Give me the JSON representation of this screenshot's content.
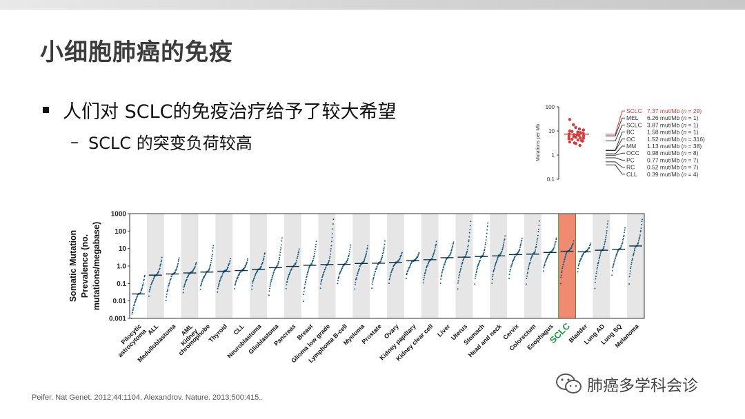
{
  "slide": {
    "title": "小细胞肺癌的免疫",
    "bullet": "人们对 SCLC的免疫治疗给予了较大希望",
    "sub_dash": "–",
    "sub_bullet": "SCLC 的突变负荷较高",
    "footer": "Peifer. Nat Genet. 2012;44:1104.  Alexandrov. Nature. 2013;500:415..",
    "watermark": "肺癌多学科会诊"
  },
  "colors": {
    "sclc_highlight": "#ee8b71",
    "sclc_label": "#1a9a3c",
    "dots": "#1f5f80",
    "small_dots": "#d63a3a",
    "band": "#e6e6e6"
  },
  "chart_data": [
    {
      "type": "scatter",
      "title": "",
      "ylabel": "Mutations per Mb",
      "y_scale": "log",
      "ylim": [
        0.1,
        100
      ],
      "yticks": [
        "100",
        "10",
        "1",
        "0.1"
      ],
      "legend": [
        {
          "label": "SCLC",
          "value": "7.37 mut/Mb",
          "n": "29",
          "highlight": true
        },
        {
          "label": "MEL",
          "value": "6.26 mut/Mb",
          "n": "1"
        },
        {
          "label": "SCLC",
          "value": "3.87 mut/Mb",
          "n": "1"
        },
        {
          "label": "BC",
          "value": "1.58 mut/Mb",
          "n": "1"
        },
        {
          "label": "OC",
          "value": "1.52 mut/Mb",
          "n": "316"
        },
        {
          "label": "MM",
          "value": "1.13 mut/Mb",
          "n": "38"
        },
        {
          "label": "OCC",
          "value": "0.98 mut/Mb",
          "n": "8"
        },
        {
          "label": "PC",
          "value": "0.77 mut/Mb",
          "n": "7"
        },
        {
          "label": "RC",
          "value": "0.52 mut/Mb",
          "n": "7"
        },
        {
          "label": "CLL",
          "value": "0.39 mut/Mb",
          "n": "4"
        }
      ],
      "sclc_points": [
        30,
        18,
        14,
        12,
        11,
        10,
        9.5,
        9,
        8.5,
        8,
        7.5,
        7,
        7,
        6.5,
        6.2,
        6,
        5.8,
        5.5,
        5.2,
        5,
        4.8,
        4.5,
        4.2,
        4,
        3.8,
        3.5,
        3.2,
        3,
        2.5
      ]
    },
    {
      "type": "scatter",
      "title": "",
      "ylabel_lines": [
        "Somatic Mutation",
        "Prevalence (no.",
        "mutations/megabase)"
      ],
      "y_scale": "log",
      "ylim": [
        0.001,
        1000
      ],
      "yticks": [
        "1000",
        "100",
        "10",
        "1.0",
        "0.1",
        "0.01",
        "0.001"
      ],
      "highlight_category": "SCLC",
      "categories": [
        "Pilocytic astrocytoma",
        "ALL",
        "Medulloblastoma",
        "AML",
        "Kidney chromophobe",
        "Thyroid",
        "CLL",
        "Neuroblastoma",
        "Glioblastoma",
        "Pancreas",
        "Breast",
        "Glioma low grade",
        "Lymphoma B-cell",
        "Myeloma",
        "Prostate",
        "Ovary",
        "Kidney papillary",
        "Kidney clear cell",
        "Liver",
        "Uterus",
        "Stomach",
        "Head and neck",
        "Cervix",
        "Colorectum",
        "Esophagus",
        "SCLC",
        "Bladder",
        "Lung AD",
        "Lung SQ",
        "Melanoma"
      ],
      "label_lines": [
        [
          "Pilocytic",
          "astrocytoma"
        ],
        [
          "ALL"
        ],
        [
          "Medulloblastoma"
        ],
        [
          "AML",
          "Kidney"
        ],
        [
          "chromophobe"
        ],
        [
          "Thyroid"
        ],
        [
          "CLL"
        ],
        [
          "Neuroblastoma"
        ],
        [
          "Glioblastoma"
        ],
        [
          "Pancreas"
        ],
        [
          "Breast"
        ],
        [
          "Glioma  low grade"
        ],
        [
          "Lymphoma  B-cell"
        ],
        [
          "Myeloma"
        ],
        [
          "Prostate"
        ],
        [
          "Ovary"
        ],
        [
          "Kidney papillary"
        ],
        [
          "Kidney clear cell"
        ],
        [
          "Liver"
        ],
        [
          "Uterus"
        ],
        [
          "Stomach"
        ],
        [
          "Head and neck"
        ],
        [
          "Cervix"
        ],
        [
          "Colorectum"
        ],
        [
          "Esophagus"
        ],
        [
          "SCLC"
        ],
        [
          "Bladder"
        ],
        [
          "Lung AD"
        ],
        [
          "Lung SQ"
        ],
        [
          "Melanoma"
        ]
      ],
      "medians": [
        0.025,
        0.3,
        0.35,
        0.4,
        0.45,
        0.5,
        0.55,
        0.65,
        0.8,
        0.95,
        1.1,
        1.2,
        1.25,
        1.4,
        1.45,
        1.6,
        2.0,
        2.3,
        3.0,
        3.2,
        3.5,
        3.8,
        4.5,
        4.8,
        6.0,
        7.0,
        6.5,
        8.0,
        9.0,
        14.0
      ],
      "ranges": [
        [
          0.001,
          0.3
        ],
        [
          0.02,
          3
        ],
        [
          0.01,
          3
        ],
        [
          0.03,
          1.5
        ],
        [
          0.05,
          15
        ],
        [
          0.03,
          2.5
        ],
        [
          0.05,
          2.5
        ],
        [
          0.05,
          6
        ],
        [
          0.02,
          40
        ],
        [
          0.05,
          10
        ],
        [
          0.01,
          25
        ],
        [
          0.05,
          500
        ],
        [
          0.1,
          15
        ],
        [
          0.05,
          15
        ],
        [
          0.05,
          25
        ],
        [
          0.1,
          6
        ],
        [
          0.2,
          6
        ],
        [
          0.1,
          25
        ],
        [
          0.1,
          25
        ],
        [
          0.05,
          350
        ],
        [
          0.1,
          300
        ],
        [
          0.1,
          50
        ],
        [
          0.2,
          40
        ],
        [
          0.1,
          350
        ],
        [
          0.5,
          40
        ],
        [
          0.1,
          25
        ],
        [
          0.5,
          20
        ],
        [
          0.05,
          400
        ],
        [
          0.3,
          150
        ],
        [
          0.1,
          500
        ]
      ]
    }
  ]
}
